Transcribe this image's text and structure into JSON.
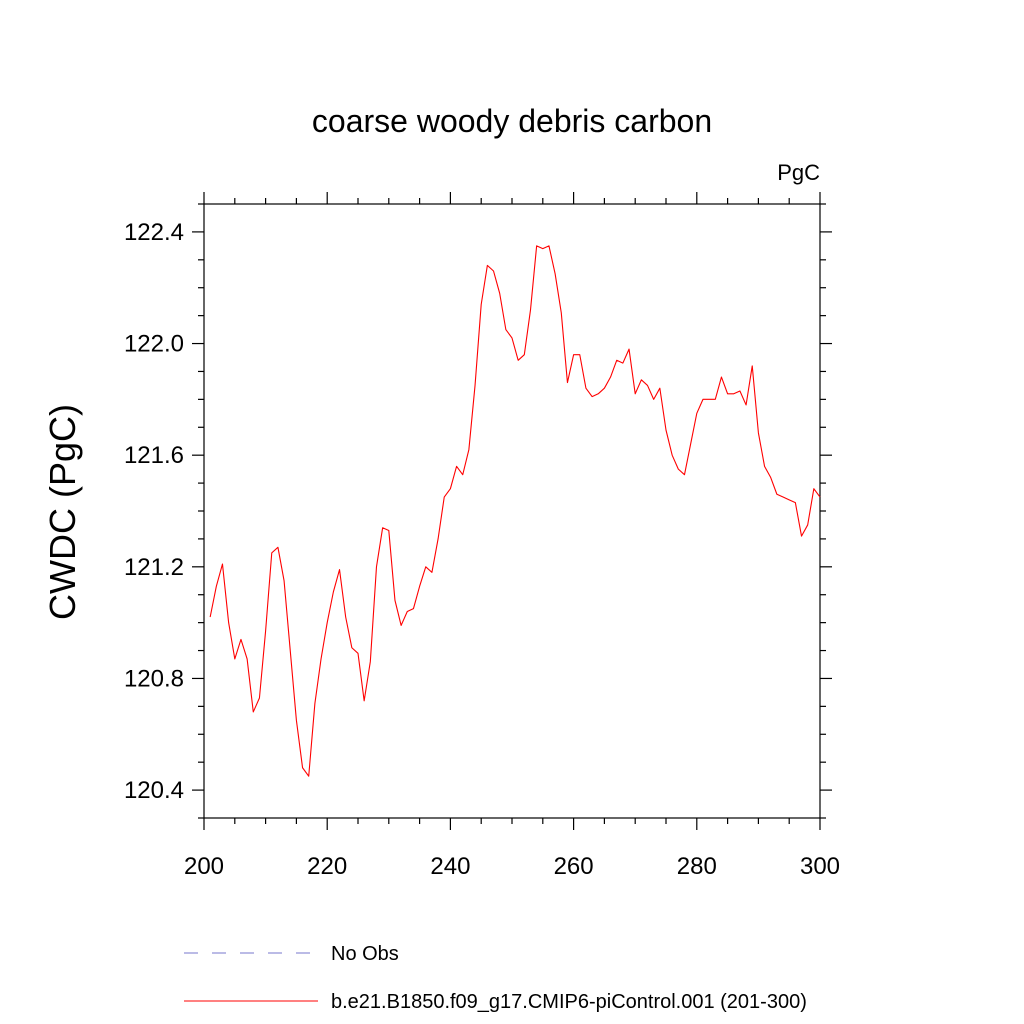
{
  "chart_data": {
    "type": "line",
    "title": "coarse woody debris carbon",
    "units": "PgC",
    "xlabel": "",
    "ylabel": "CWDC  (PgC)",
    "xlim": [
      200,
      300
    ],
    "ylim": [
      120.3,
      122.5
    ],
    "xticks": [
      200,
      220,
      240,
      260,
      280,
      300
    ],
    "yticks": [
      "122.4",
      "122.0",
      "121.6",
      "121.2",
      "120.8",
      "120.4"
    ],
    "grid": false,
    "legend_position": "bottom",
    "colors": {
      "model": "#ff0000",
      "obs": "#7777cc"
    },
    "series": [
      {
        "name": "No Obs",
        "style": "dashed",
        "x": [],
        "y": []
      },
      {
        "name": "b.e21.B1850.f09_g17.CMIP6-piControl.001 (201-300)",
        "style": "solid",
        "x": [
          201,
          202,
          203,
          204,
          205,
          206,
          207,
          208,
          209,
          210,
          211,
          212,
          213,
          214,
          215,
          216,
          217,
          218,
          219,
          220,
          221,
          222,
          223,
          224,
          225,
          226,
          227,
          228,
          229,
          230,
          231,
          232,
          233,
          234,
          235,
          236,
          237,
          238,
          239,
          240,
          241,
          242,
          243,
          244,
          245,
          246,
          247,
          248,
          249,
          250,
          251,
          252,
          253,
          254,
          255,
          256,
          257,
          258,
          259,
          260,
          261,
          262,
          263,
          264,
          265,
          266,
          267,
          268,
          269,
          270,
          271,
          272,
          273,
          274,
          275,
          276,
          277,
          278,
          279,
          280,
          281,
          282,
          283,
          284,
          285,
          286,
          287,
          288,
          289,
          290,
          291,
          292,
          293,
          294,
          295,
          296,
          297,
          298,
          299,
          300
        ],
        "y": [
          121.02,
          121.13,
          121.21,
          121.0,
          120.87,
          120.94,
          120.87,
          120.68,
          120.73,
          120.97,
          121.25,
          121.27,
          121.15,
          120.9,
          120.65,
          120.48,
          120.45,
          120.71,
          120.87,
          121.0,
          121.11,
          121.19,
          121.02,
          120.91,
          120.89,
          120.72,
          120.86,
          121.2,
          121.34,
          121.33,
          121.08,
          120.99,
          121.04,
          121.05,
          121.13,
          121.2,
          121.18,
          121.3,
          121.45,
          121.48,
          121.56,
          121.53,
          121.62,
          121.85,
          122.14,
          122.28,
          122.26,
          122.18,
          122.05,
          122.02,
          121.94,
          121.96,
          122.12,
          122.35,
          122.34,
          122.35,
          122.25,
          122.11,
          121.86,
          121.96,
          121.96,
          121.84,
          121.81,
          121.82,
          121.84,
          121.88,
          121.94,
          121.93,
          121.98,
          121.82,
          121.87,
          121.85,
          121.8,
          121.84,
          121.69,
          121.6,
          121.55,
          121.53,
          121.64,
          121.75,
          121.8,
          121.8,
          121.8,
          121.88,
          121.82,
          121.82,
          121.83,
          121.78,
          121.92,
          121.68,
          121.56,
          121.52,
          121.46,
          121.45,
          121.44,
          121.43,
          121.31,
          121.35,
          121.48,
          121.45
        ]
      }
    ]
  }
}
